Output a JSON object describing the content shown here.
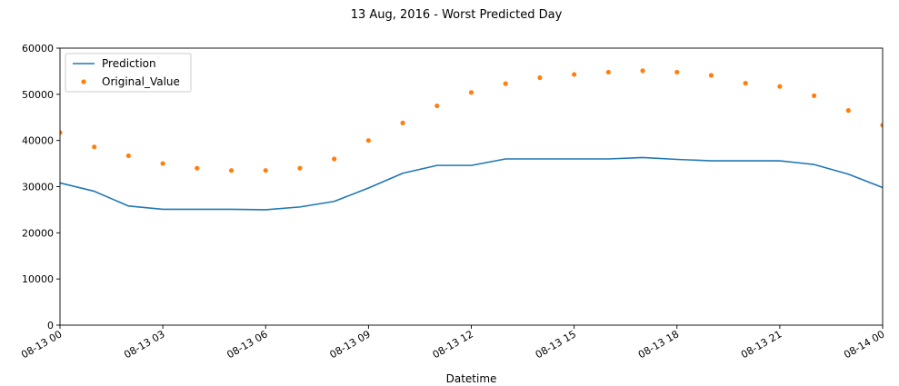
{
  "chart_data": {
    "type": "line",
    "title": "13 Aug, 2016 - Worst Predicted Day",
    "xlabel": "Datetime",
    "ylabel": "",
    "x_hours": [
      0,
      1,
      2,
      3,
      4,
      5,
      6,
      7,
      8,
      9,
      10,
      11,
      12,
      13,
      14,
      15,
      16,
      17,
      18,
      19,
      20,
      21,
      22,
      23,
      24
    ],
    "xlim_hours": [
      0,
      24
    ],
    "ylim": [
      0,
      60000
    ],
    "x_ticks": [
      {
        "hour": 0,
        "label": "08-13 00"
      },
      {
        "hour": 3,
        "label": "08-13 03"
      },
      {
        "hour": 6,
        "label": "08-13 06"
      },
      {
        "hour": 9,
        "label": "08-13 09"
      },
      {
        "hour": 12,
        "label": "08-13 12"
      },
      {
        "hour": 15,
        "label": "08-13 15"
      },
      {
        "hour": 18,
        "label": "08-13 18"
      },
      {
        "hour": 21,
        "label": "08-13 21"
      },
      {
        "hour": 24,
        "label": "08-14 00"
      }
    ],
    "y_ticks": [
      {
        "value": 0,
        "label": "0"
      },
      {
        "value": 10000,
        "label": "10000"
      },
      {
        "value": 20000,
        "label": "20000"
      },
      {
        "value": 30000,
        "label": "30000"
      },
      {
        "value": 40000,
        "label": "40000"
      },
      {
        "value": 50000,
        "label": "50000"
      },
      {
        "value": 60000,
        "label": "60000"
      }
    ],
    "grid": false,
    "legend_position": "upper-left",
    "series": [
      {
        "name": "Prediction",
        "style": "line",
        "color": "#1f77b4",
        "values": [
          30800,
          29000,
          25800,
          25100,
          25100,
          25100,
          25000,
          25600,
          26800,
          29700,
          32900,
          34600,
          34600,
          36000,
          36000,
          36000,
          36000,
          36300,
          35900,
          35600,
          35600,
          35600,
          34800,
          32700,
          29800
        ]
      },
      {
        "name": "Original_Value",
        "style": "dots",
        "color": "#ff7f0e",
        "values": [
          41700,
          38600,
          36700,
          35000,
          34000,
          33500,
          33500,
          34000,
          36000,
          40000,
          43800,
          47500,
          50400,
          52300,
          53600,
          54300,
          54800,
          55100,
          54800,
          54100,
          52400,
          51700,
          49700,
          46500,
          43300
        ]
      }
    ]
  }
}
